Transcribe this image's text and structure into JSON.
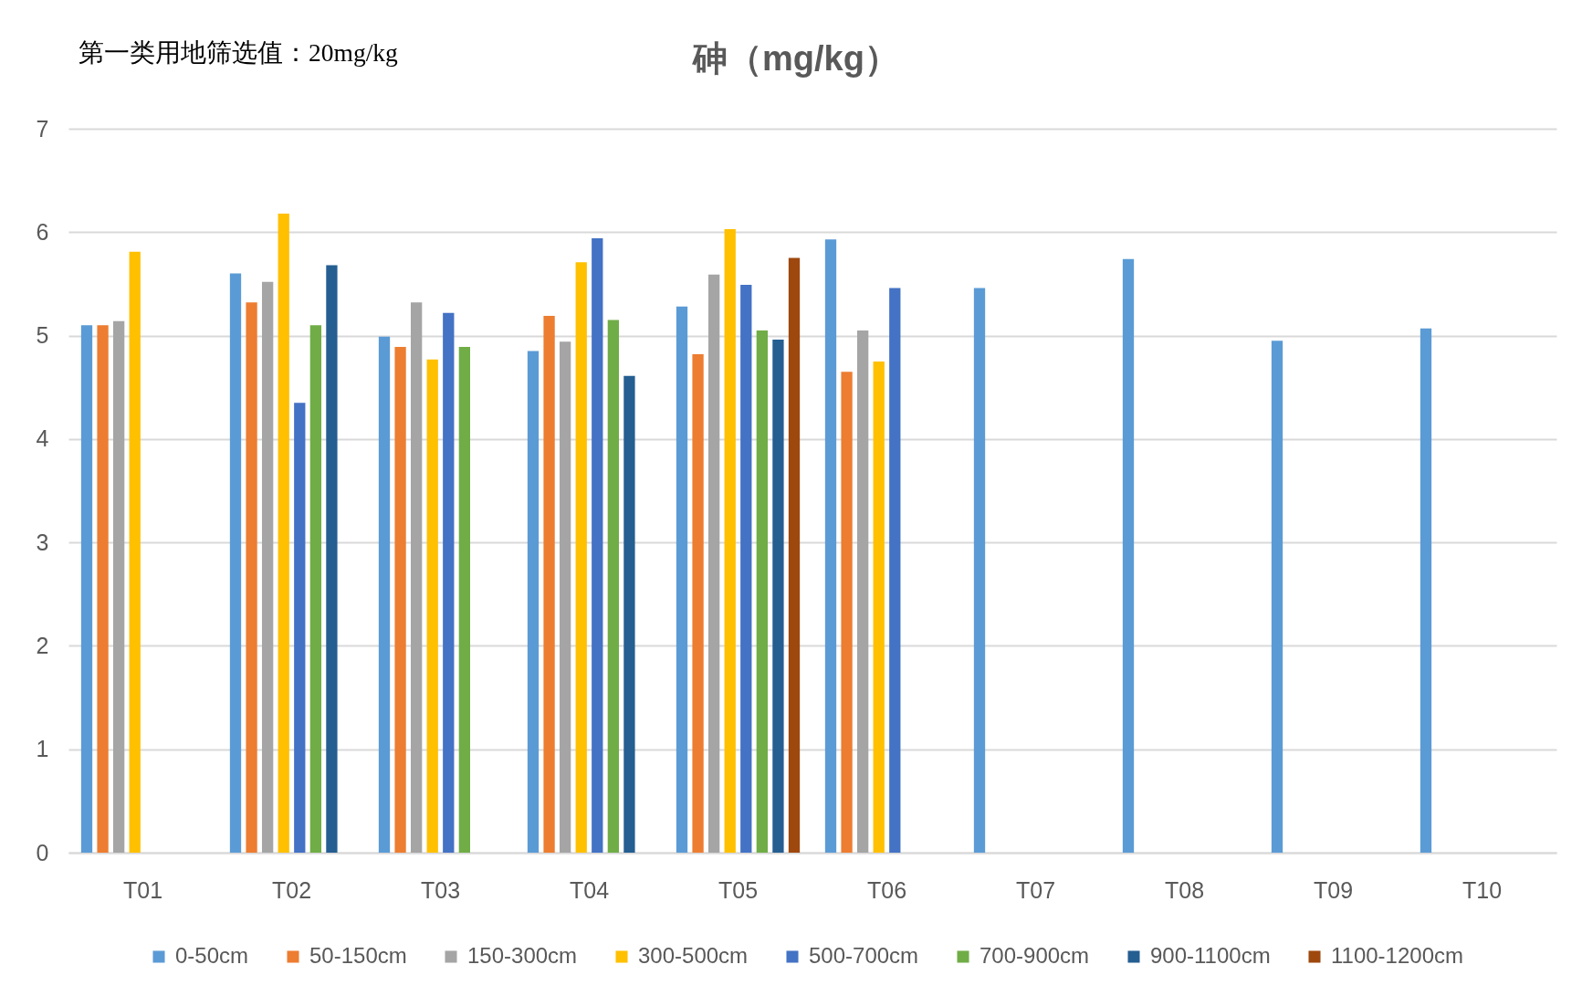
{
  "chart_data": {
    "type": "bar",
    "title": "砷（mg/kg）",
    "annotations": [
      "第一类用地筛选值：20mg/kg"
    ],
    "categories": [
      "T01",
      "T02",
      "T03",
      "T04",
      "T05",
      "T06",
      "T07",
      "T08",
      "T09",
      "T10"
    ],
    "series": [
      {
        "name": "0-50cm",
        "color": "#5b9bd5",
        "values": [
          5.1,
          5.6,
          4.99,
          4.85,
          5.28,
          5.93,
          5.46,
          5.74,
          4.95,
          5.07
        ]
      },
      {
        "name": "50-150cm",
        "color": "#ed7d31",
        "values": [
          5.1,
          5.32,
          4.89,
          5.19,
          4.82,
          4.65,
          null,
          null,
          null,
          null
        ]
      },
      {
        "name": "150-300cm",
        "color": "#a5a5a5",
        "values": [
          5.14,
          5.52,
          5.32,
          4.94,
          5.59,
          5.05,
          null,
          null,
          null,
          null
        ]
      },
      {
        "name": "300-500cm",
        "color": "#ffc000",
        "values": [
          5.81,
          6.18,
          4.77,
          5.71,
          6.03,
          4.75,
          null,
          null,
          null,
          null
        ]
      },
      {
        "name": "500-700cm",
        "color": "#4472c4",
        "values": [
          null,
          4.35,
          5.22,
          5.94,
          5.49,
          5.46,
          null,
          null,
          null,
          null
        ]
      },
      {
        "name": "700-900cm",
        "color": "#70ad47",
        "values": [
          null,
          5.1,
          4.89,
          5.15,
          5.05,
          null,
          null,
          null,
          null,
          null
        ]
      },
      {
        "name": "900-1100cm",
        "color": "#255e91",
        "values": [
          null,
          5.68,
          null,
          4.61,
          4.96,
          null,
          null,
          null,
          null,
          null
        ]
      },
      {
        "name": "1100-1200cm",
        "color": "#9e480e",
        "values": [
          null,
          null,
          null,
          null,
          5.75,
          null,
          null,
          null,
          null,
          null
        ]
      }
    ],
    "ylim": [
      0,
      7
    ],
    "yticks": [
      0,
      1,
      2,
      3,
      4,
      5,
      6,
      7
    ],
    "grid": "y",
    "legend": "bottom"
  }
}
